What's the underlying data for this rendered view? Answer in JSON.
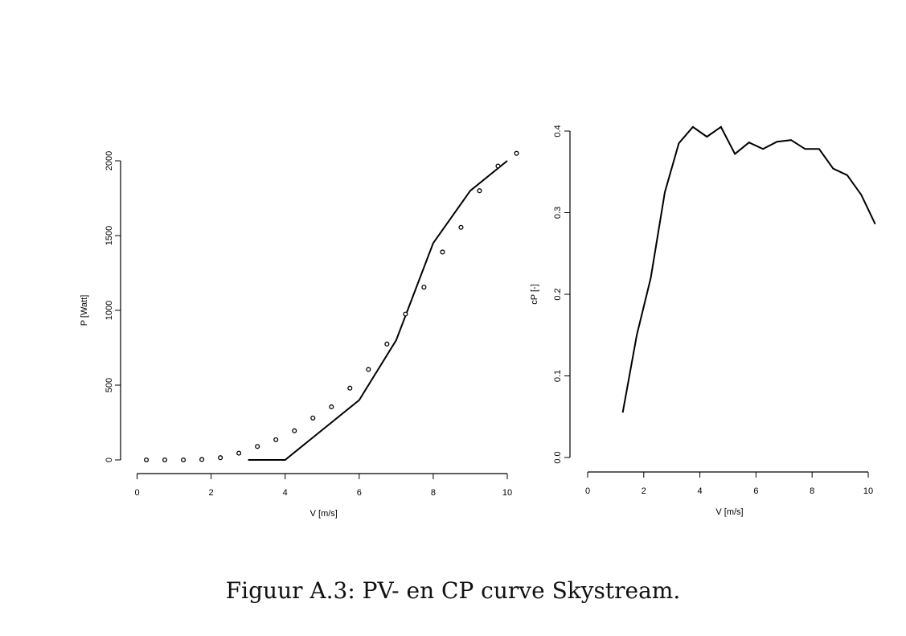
{
  "chart_data": [
    {
      "type": "line",
      "xlabel": "V [m/s]",
      "ylabel": "P [Watt]",
      "xlim": [
        0,
        10.3
      ],
      "ylim": [
        0,
        2000
      ],
      "xticks": [
        0,
        2,
        4,
        6,
        8,
        10
      ],
      "yticks": [
        0,
        500,
        1000,
        1500,
        2000
      ],
      "series": [
        {
          "name": "power-curve-line",
          "style": "line",
          "x": [
            3,
            4,
            6,
            7,
            8,
            9,
            10
          ],
          "y": [
            0,
            0,
            400,
            800,
            1450,
            1800,
            2000
          ]
        },
        {
          "name": "power-curve-points",
          "style": "points",
          "x": [
            0.25,
            0.75,
            1.25,
            1.75,
            2.25,
            2.75,
            3.25,
            3.75,
            4.25,
            4.75,
            5.25,
            5.75,
            6.25,
            6.75,
            7.25,
            7.75,
            8.25,
            8.75,
            9.25,
            9.75,
            10.25
          ],
          "y": [
            0,
            0,
            0,
            3,
            15,
            45,
            90,
            135,
            195,
            280,
            355,
            480,
            605,
            775,
            975,
            1155,
            1390,
            1555,
            1800,
            1965,
            2050
          ]
        }
      ]
    },
    {
      "type": "line",
      "xlabel": "V [m/s]",
      "ylabel": "cP [-]",
      "xlim": [
        0,
        10.3
      ],
      "ylim": [
        0,
        0.4
      ],
      "xticks": [
        0,
        2,
        4,
        6,
        8,
        10
      ],
      "yticks": [
        0.0,
        0.1,
        0.2,
        0.3,
        0.4
      ],
      "series": [
        {
          "name": "cp-curve",
          "style": "line",
          "x": [
            1.25,
            1.75,
            2.25,
            2.75,
            3.25,
            3.75,
            4.25,
            4.75,
            5.25,
            5.75,
            6.25,
            6.75,
            7.25,
            7.75,
            8.25,
            8.75,
            9.25,
            9.75,
            10.25
          ],
          "y": [
            0.055,
            0.15,
            0.22,
            0.325,
            0.385,
            0.405,
            0.393,
            0.405,
            0.372,
            0.386,
            0.378,
            0.387,
            0.389,
            0.378,
            0.378,
            0.354,
            0.346,
            0.322,
            0.286
          ]
        }
      ]
    }
  ],
  "caption": "Figuur A.3: PV- en CP curve Skystream."
}
